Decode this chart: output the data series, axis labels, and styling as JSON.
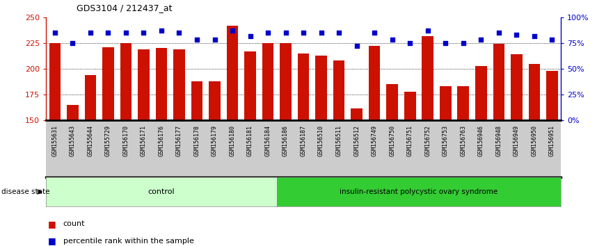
{
  "title": "GDS3104 / 212437_at",
  "samples": [
    "GSM155631",
    "GSM155643",
    "GSM155644",
    "GSM155729",
    "GSM156170",
    "GSM156171",
    "GSM156176",
    "GSM156177",
    "GSM156178",
    "GSM156179",
    "GSM156180",
    "GSM156181",
    "GSM156184",
    "GSM156186",
    "GSM156187",
    "GSM156510",
    "GSM156511",
    "GSM156512",
    "GSM156749",
    "GSM156750",
    "GSM156751",
    "GSM156752",
    "GSM156753",
    "GSM156763",
    "GSM156946",
    "GSM156948",
    "GSM156949",
    "GSM156950",
    "GSM156951"
  ],
  "counts": [
    225,
    165,
    194,
    221,
    225,
    219,
    220,
    219,
    188,
    188,
    242,
    217,
    225,
    225,
    215,
    213,
    208,
    162,
    222,
    185,
    178,
    232,
    183,
    183,
    203,
    224,
    214,
    205,
    198
  ],
  "percentiles": [
    85,
    75,
    85,
    85,
    85,
    85,
    87,
    85,
    78,
    78,
    87,
    82,
    85,
    85,
    85,
    85,
    85,
    72,
    85,
    78,
    75,
    87,
    75,
    75,
    78,
    85,
    83,
    82,
    78
  ],
  "control_count": 13,
  "disease_count": 16,
  "bar_color": "#cc1100",
  "dot_color": "#0000cc",
  "control_label": "control",
  "disease_label": "insulin-resistant polycystic ovary syndrome",
  "control_bg": "#ccffcc",
  "disease_bg": "#33cc33",
  "label_bg": "#cccccc",
  "ylim_left": [
    150,
    250
  ],
  "ylim_right": [
    0,
    100
  ],
  "yticks_left": [
    150,
    175,
    200,
    225,
    250
  ],
  "yticks_right": [
    0,
    25,
    50,
    75,
    100
  ],
  "grid_values": [
    175,
    200,
    225
  ],
  "legend_count_label": "count",
  "legend_pct_label": "percentile rank within the sample",
  "disease_state_label": "disease state"
}
